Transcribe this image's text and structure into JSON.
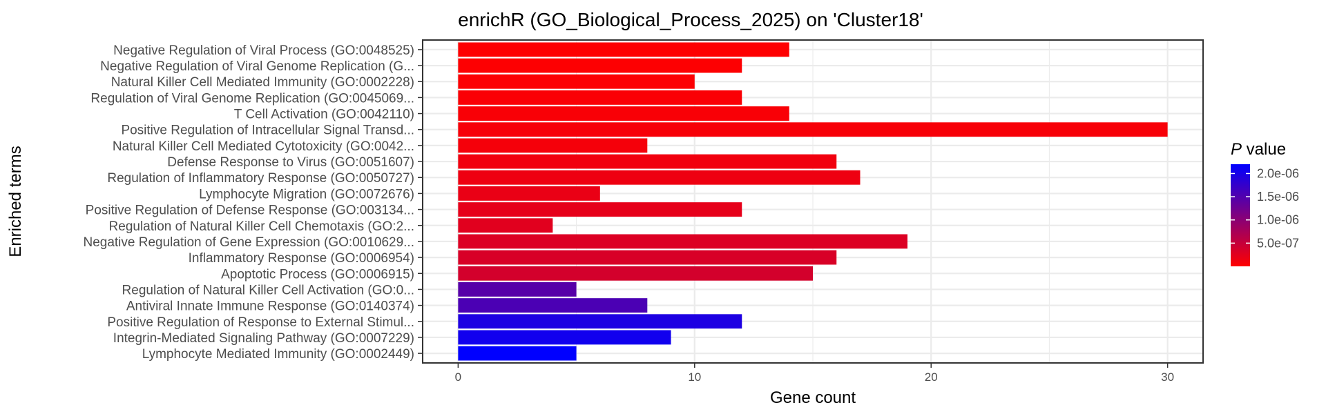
{
  "chart_data": {
    "type": "bar",
    "orientation": "horizontal",
    "title": "enrichR (GO_Biological_Process_2025) on 'Cluster18'",
    "xlabel": "Gene count",
    "ylabel": "Enriched terms",
    "xlim": [
      -1.5,
      31.5
    ],
    "x_ticks": [
      0,
      10,
      20,
      30
    ],
    "grid": true,
    "categories": [
      "Negative Regulation of Viral Process (GO:0048525)",
      "Negative Regulation of Viral Genome Replication (G...",
      "Natural Killer Cell Mediated Immunity (GO:0002228)",
      "Regulation of Viral Genome Replication (GO:0045069...",
      "T Cell Activation (GO:0042110)",
      "Positive Regulation of Intracellular Signal Transd...",
      "Natural Killer Cell Mediated Cytotoxicity (GO:0042...",
      "Defense Response to Virus (GO:0051607)",
      "Regulation of Inflammatory Response (GO:0050727)",
      "Lymphocyte Migration (GO:0072676)",
      "Positive Regulation of Defense Response (GO:003134...",
      "Regulation of Natural Killer Cell Chemotaxis (GO:2...",
      "Negative Regulation of Gene Expression (GO:0010629...",
      "Inflammatory Response (GO:0006954)",
      "Apoptotic Process (GO:0006915)",
      "Regulation of Natural Killer Cell Activation (GO:0...",
      "Antiviral Innate Immune Response (GO:0140374)",
      "Positive Regulation of Response to External Stimul...",
      "Integrin-Mediated Signaling Pathway (GO:0007229)",
      "Lymphocyte Mediated Immunity (GO:0002449)"
    ],
    "values": [
      14,
      12,
      10,
      12,
      14,
      30,
      8,
      16,
      17,
      6,
      12,
      4,
      19,
      16,
      15,
      5,
      8,
      12,
      9,
      5
    ],
    "p_values": [
      1.2e-08,
      2e-08,
      3e-08,
      4e-08,
      5e-08,
      7e-08,
      9e-08,
      1.2e-07,
      1.5e-07,
      1.8e-07,
      2.2e-07,
      2.6e-07,
      3e-07,
      3.4e-07,
      3.8e-07,
      1.45e-06,
      1.55e-06,
      1.95e-06,
      2.05e-06,
      2.2e-06
    ],
    "color_scale": {
      "title_italic": "P",
      "title_rest": " value",
      "low_color": "#ff0000",
      "high_color": "#0000ff",
      "range": [
        0,
        2.2e-06
      ],
      "ticks": [
        {
          "value": 2e-06,
          "label": "2.0e-06"
        },
        {
          "value": 1.5e-06,
          "label": "1.5e-06"
        },
        {
          "value": 1e-06,
          "label": "1.0e-06"
        },
        {
          "value": 5e-07,
          "label": "5.0e-07"
        }
      ]
    }
  }
}
